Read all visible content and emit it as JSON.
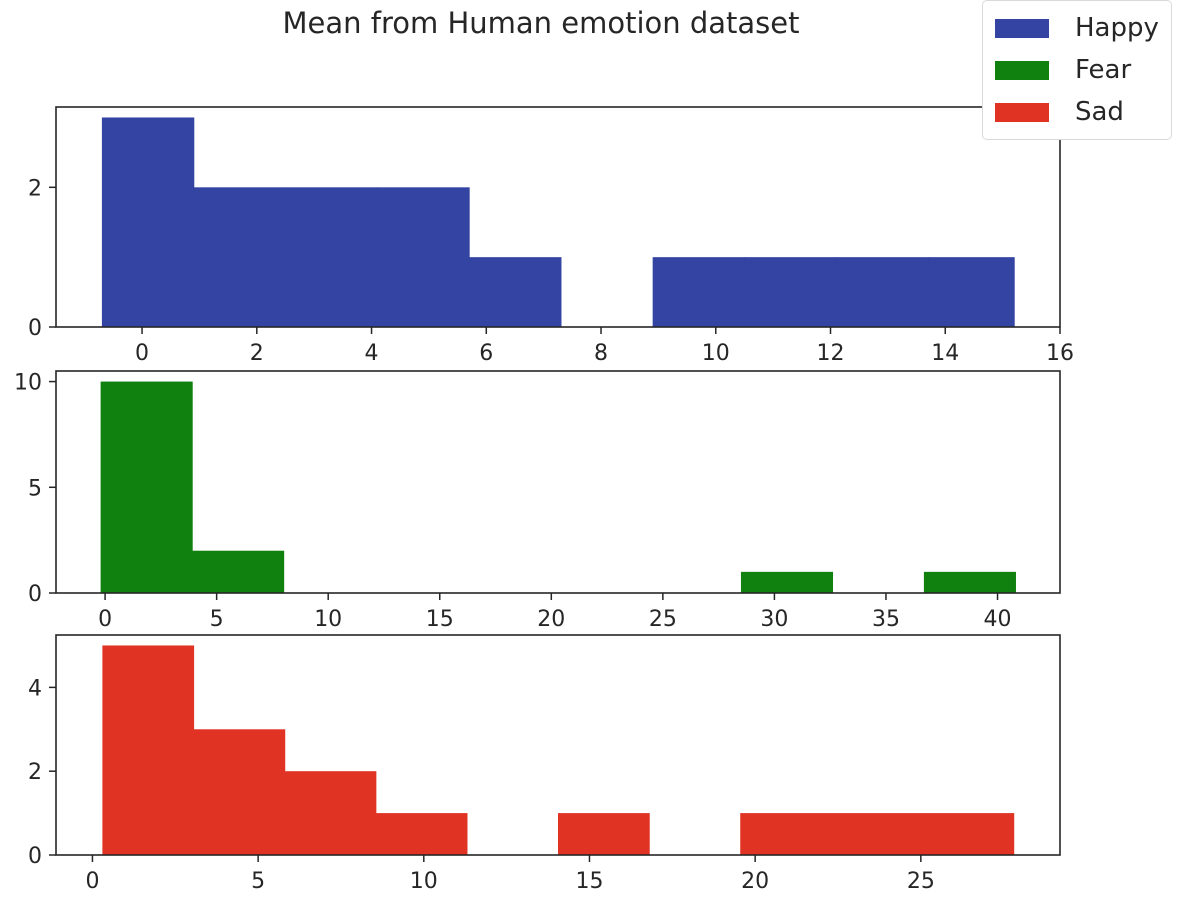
{
  "figure": {
    "title": "Mean from Human emotion dataset"
  },
  "legend": [
    {
      "label": "Happy",
      "color": "#3344a3"
    },
    {
      "label": "Fear",
      "color": "#10800f"
    },
    {
      "label": "Sad",
      "color": "#e03324"
    }
  ],
  "chart_data": [
    {
      "type": "bar",
      "name": "Happy",
      "color": "#3344a3",
      "bins": [
        {
          "x0": -0.7,
          "x1": 0.9,
          "count": 3
        },
        {
          "x0": 0.9,
          "x1": 2.5,
          "count": 2
        },
        {
          "x0": 2.5,
          "x1": 4.1,
          "count": 2
        },
        {
          "x0": 4.1,
          "x1": 5.7,
          "count": 2
        },
        {
          "x0": 5.7,
          "x1": 7.3,
          "count": 1
        },
        {
          "x0": 7.3,
          "x1": 8.9,
          "count": 0
        },
        {
          "x0": 8.9,
          "x1": 10.5,
          "count": 1
        },
        {
          "x0": 10.5,
          "x1": 12.1,
          "count": 1
        },
        {
          "x0": 12.1,
          "x1": 13.7,
          "count": 1
        },
        {
          "x0": 13.7,
          "x1": 15.2,
          "count": 1
        }
      ],
      "xlim": [
        -1.5,
        16
      ],
      "ylim": [
        0,
        3.15
      ],
      "xticks": [
        0,
        2,
        4,
        6,
        8,
        10,
        12,
        14,
        16
      ],
      "yticks": [
        0,
        2
      ]
    },
    {
      "type": "bar",
      "name": "Fear",
      "color": "#10800f",
      "bins": [
        {
          "x0": -0.2,
          "x1": 3.9,
          "count": 10
        },
        {
          "x0": 3.9,
          "x1": 8.0,
          "count": 2
        },
        {
          "x0": 8.0,
          "x1": 12.1,
          "count": 0
        },
        {
          "x0": 12.1,
          "x1": 16.2,
          "count": 0
        },
        {
          "x0": 16.2,
          "x1": 20.3,
          "count": 0
        },
        {
          "x0": 20.3,
          "x1": 24.4,
          "count": 0
        },
        {
          "x0": 24.4,
          "x1": 28.5,
          "count": 0
        },
        {
          "x0": 28.5,
          "x1": 32.6,
          "count": 1
        },
        {
          "x0": 32.6,
          "x1": 36.7,
          "count": 0
        },
        {
          "x0": 36.7,
          "x1": 40.8,
          "count": 1
        }
      ],
      "xlim": [
        -2.2,
        42.8
      ],
      "ylim": [
        0,
        10.5
      ],
      "xticks": [
        0,
        5,
        10,
        15,
        20,
        25,
        30,
        35,
        40
      ],
      "yticks": [
        0,
        5,
        10
      ]
    },
    {
      "type": "bar",
      "name": "Sad",
      "color": "#e03324",
      "bins": [
        {
          "x0": 0.3,
          "x1": 3.05,
          "count": 5
        },
        {
          "x0": 3.05,
          "x1": 5.8,
          "count": 3
        },
        {
          "x0": 5.8,
          "x1": 8.55,
          "count": 2
        },
        {
          "x0": 8.55,
          "x1": 11.3,
          "count": 1
        },
        {
          "x0": 11.3,
          "x1": 14.05,
          "count": 0
        },
        {
          "x0": 14.05,
          "x1": 16.8,
          "count": 1
        },
        {
          "x0": 16.8,
          "x1": 19.55,
          "count": 0
        },
        {
          "x0": 19.55,
          "x1": 22.3,
          "count": 1
        },
        {
          "x0": 22.3,
          "x1": 25.05,
          "count": 1
        },
        {
          "x0": 25.05,
          "x1": 27.8,
          "count": 1
        }
      ],
      "xlim": [
        -1.1,
        29.2
      ],
      "ylim": [
        0,
        5.25
      ],
      "xticks": [
        0,
        5,
        10,
        15,
        20,
        25
      ],
      "yticks": [
        0,
        2,
        4
      ]
    }
  ]
}
